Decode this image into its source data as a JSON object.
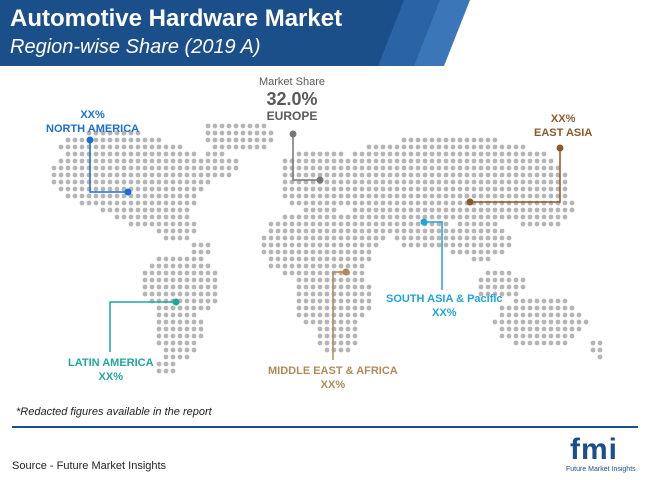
{
  "header": {
    "title": "Automotive Hardware Market",
    "subtitle": "Region-wise Share (2019 A)"
  },
  "chart_data": {
    "type": "map",
    "value_caption": "Market Share",
    "regions": [
      {
        "name": "NORTH AMERICA",
        "value": "XX%",
        "color": "#1b6fd1"
      },
      {
        "name": "EUROPE",
        "value": "32.0%",
        "color": "#777777"
      },
      {
        "name": "EAST ASIA",
        "value": "XX%",
        "color": "#8a5a2b"
      },
      {
        "name": "SOUTH ASIA & Pacific",
        "value": "XX%",
        "color": "#1ea4dc"
      },
      {
        "name": "LATIN AMERICA",
        "value": "XX%",
        "color": "#1fa89a"
      },
      {
        "name": "MIDDLE EAST & AFRICA",
        "value": "XX%",
        "color": "#b08a5a"
      }
    ]
  },
  "footnote": "*Redacted figures available in the report",
  "source": "Source - Future Market Insights",
  "logo": {
    "word": "fmi",
    "tagline": "Future Market Insights"
  },
  "colors": {
    "navy": "#1b4f8a",
    "dot": "#b5b5b5"
  }
}
